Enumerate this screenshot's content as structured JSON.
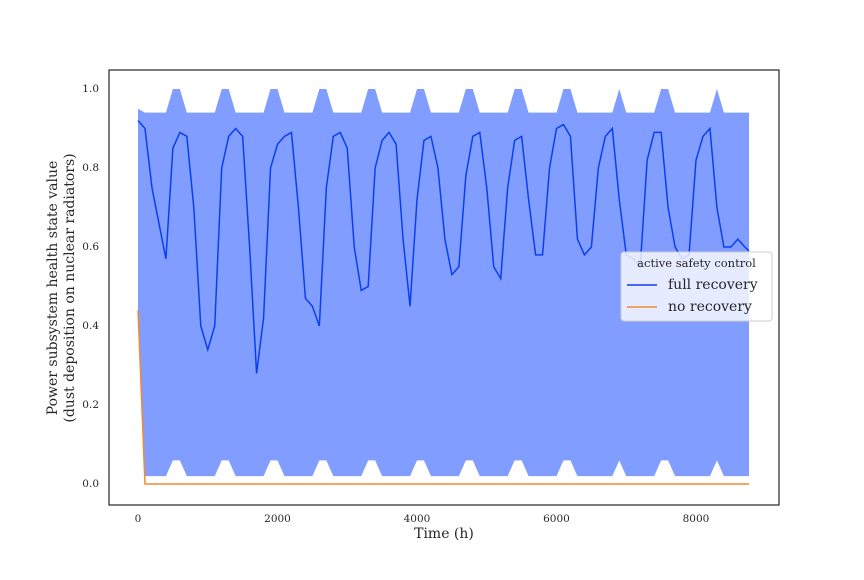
{
  "chart_data": {
    "type": "line",
    "xlabel": "Time (h)",
    "ylabel": [
      "Power subsystem health state value",
      "(dust deposition on nuclear radiators)"
    ],
    "x": [
      0,
      100,
      200,
      300,
      400,
      500,
      600,
      700,
      800,
      900,
      1000,
      1100,
      1200,
      1300,
      1400,
      1500,
      1600,
      1700,
      1800,
      1900,
      2000,
      2100,
      2200,
      2300,
      2400,
      2500,
      2600,
      2700,
      2800,
      2900,
      3000,
      3100,
      3200,
      3300,
      3400,
      3500,
      3600,
      3700,
      3800,
      3900,
      4000,
      4100,
      4200,
      4300,
      4400,
      4500,
      4600,
      4700,
      4800,
      4900,
      5000,
      5100,
      5200,
      5300,
      5400,
      5500,
      5600,
      5700,
      5800,
      5900,
      6000,
      6100,
      6200,
      6300,
      6400,
      6500,
      6600,
      6700,
      6800,
      6900,
      7000,
      7100,
      7200,
      7300,
      7400,
      7500,
      7600,
      7700,
      7800,
      7900,
      8000,
      8100,
      8200,
      8300,
      8400,
      8500,
      8600,
      8700,
      8760
    ],
    "series": [
      {
        "name": "full recovery",
        "color": "#0a3ff0",
        "values": [
          0.92,
          0.9,
          0.75,
          0.66,
          0.57,
          0.85,
          0.89,
          0.88,
          0.7,
          0.4,
          0.34,
          0.4,
          0.8,
          0.88,
          0.9,
          0.88,
          0.6,
          0.28,
          0.42,
          0.8,
          0.86,
          0.88,
          0.89,
          0.7,
          0.47,
          0.45,
          0.4,
          0.75,
          0.88,
          0.89,
          0.85,
          0.6,
          0.49,
          0.5,
          0.8,
          0.87,
          0.89,
          0.86,
          0.62,
          0.45,
          0.72,
          0.87,
          0.88,
          0.8,
          0.62,
          0.53,
          0.55,
          0.78,
          0.88,
          0.89,
          0.75,
          0.55,
          0.52,
          0.75,
          0.87,
          0.88,
          0.72,
          0.58,
          0.58,
          0.8,
          0.9,
          0.91,
          0.88,
          0.62,
          0.58,
          0.6,
          0.8,
          0.88,
          0.9,
          0.72,
          0.58,
          0.57,
          0.55,
          0.82,
          0.89,
          0.89,
          0.7,
          0.6,
          0.57,
          0.58,
          0.82,
          0.88,
          0.9,
          0.7,
          0.6,
          0.6,
          0.62,
          0.6,
          0.59
        ]
      },
      {
        "name": "no recovery",
        "color": "#f28a2e",
        "values": [
          0.44,
          0,
          0,
          0,
          0,
          0,
          0,
          0,
          0,
          0,
          0,
          0,
          0,
          0,
          0,
          0,
          0,
          0,
          0,
          0,
          0,
          0,
          0,
          0,
          0,
          0,
          0,
          0,
          0,
          0,
          0,
          0,
          0,
          0,
          0,
          0,
          0,
          0,
          0,
          0,
          0,
          0,
          0,
          0,
          0,
          0,
          0,
          0,
          0,
          0,
          0,
          0,
          0,
          0,
          0,
          0,
          0,
          0,
          0,
          0,
          0,
          0,
          0,
          0,
          0,
          0,
          0,
          0,
          0,
          0,
          0,
          0,
          0,
          0,
          0,
          0,
          0,
          0,
          0,
          0,
          0,
          0,
          0,
          0,
          0,
          0,
          0,
          0,
          0
        ]
      }
    ],
    "band": {
      "color": "#809dff",
      "upper": [
        0.95,
        0.94,
        0.94,
        0.94,
        0.94,
        1,
        1,
        0.94,
        0.94,
        0.94,
        0.94,
        0.94,
        1,
        1,
        0.94,
        0.94,
        0.94,
        0.94,
        0.94,
        1,
        1,
        0.94,
        0.94,
        0.94,
        0.94,
        0.94,
        1,
        1,
        0.94,
        0.94,
        0.94,
        0.94,
        0.94,
        1,
        1,
        0.94,
        0.94,
        0.94,
        0.94,
        0.94,
        1,
        1,
        0.94,
        0.94,
        0.94,
        0.94,
        0.94,
        1,
        1,
        0.94,
        0.94,
        0.94,
        0.94,
        0.94,
        1,
        1,
        0.94,
        0.94,
        0.94,
        0.94,
        0.94,
        1,
        1,
        0.94,
        0.94,
        0.94,
        0.94,
        0.94,
        0.94,
        1,
        0.94,
        0.94,
        0.94,
        0.94,
        0.94,
        1,
        1,
        0.94,
        0.94,
        0.94,
        0.94,
        0.94,
        0.94,
        1,
        0.94,
        0.94,
        0.94,
        0.94,
        0.94
      ],
      "lower": [
        0.44,
        0.02,
        0.02,
        0.02,
        0.02,
        0.06,
        0.06,
        0.02,
        0.02,
        0.02,
        0.02,
        0.02,
        0.06,
        0.06,
        0.02,
        0.02,
        0.02,
        0.02,
        0.02,
        0.06,
        0.06,
        0.02,
        0.02,
        0.02,
        0.02,
        0.02,
        0.06,
        0.06,
        0.02,
        0.02,
        0.02,
        0.02,
        0.02,
        0.06,
        0.06,
        0.02,
        0.02,
        0.02,
        0.02,
        0.02,
        0.06,
        0.06,
        0.02,
        0.02,
        0.02,
        0.02,
        0.02,
        0.06,
        0.06,
        0.02,
        0.02,
        0.02,
        0.02,
        0.02,
        0.06,
        0.06,
        0.02,
        0.02,
        0.02,
        0.02,
        0.02,
        0.06,
        0.06,
        0.02,
        0.02,
        0.02,
        0.02,
        0.02,
        0.02,
        0.06,
        0.02,
        0.02,
        0.02,
        0.02,
        0.02,
        0.06,
        0.06,
        0.02,
        0.02,
        0.02,
        0.02,
        0.02,
        0.02,
        0.06,
        0.02,
        0.02,
        0.02,
        0.02,
        0.02
      ]
    },
    "xlim": [
      -416,
      9190
    ],
    "ylim": [
      -0.053,
      1.048
    ],
    "xticks": [
      0,
      2000,
      4000,
      6000,
      8000
    ],
    "yticks": [
      {
        "value": 0,
        "label": "0.0"
      },
      0.2,
      0.4,
      0.6,
      0.8,
      {
        "value": 1,
        "label": "1.0"
      }
    ],
    "legend": {
      "title": "active safety control",
      "position": "center right"
    }
  }
}
